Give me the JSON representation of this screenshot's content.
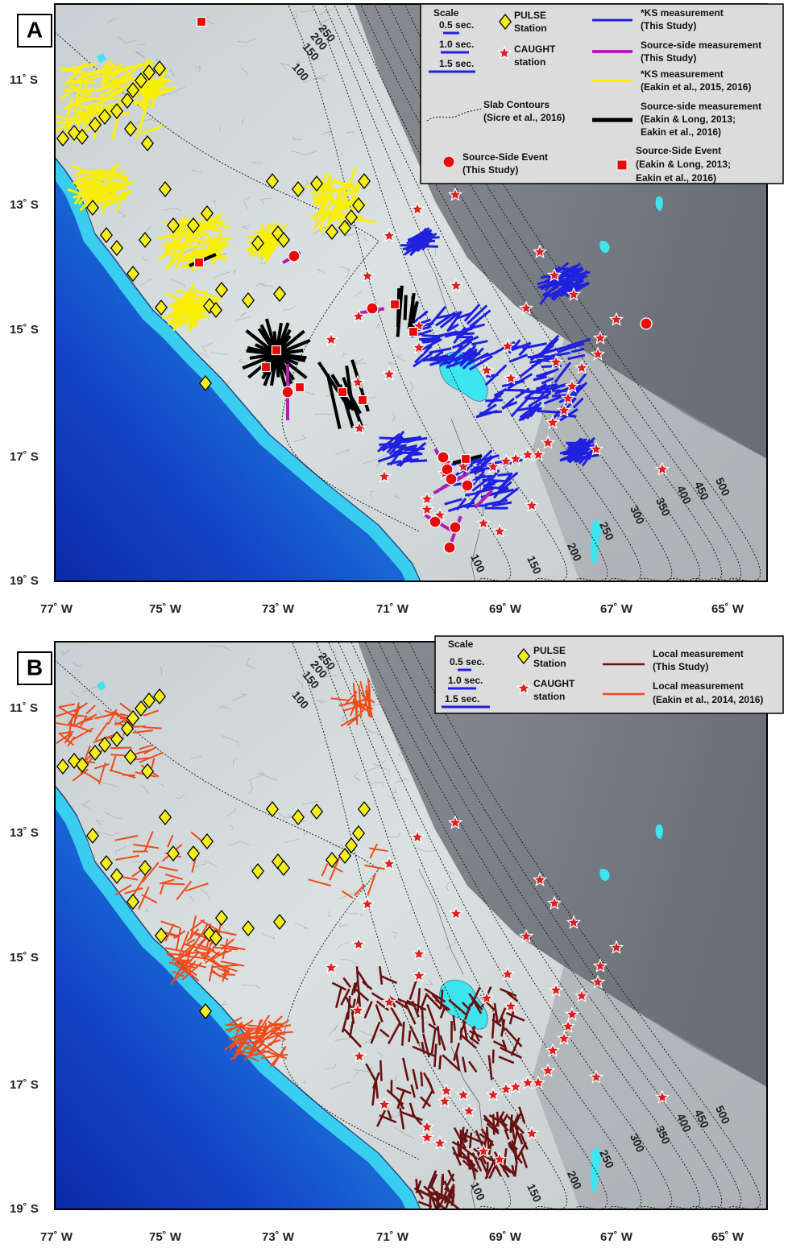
{
  "panels": [
    {
      "label": "A",
      "lat_labels": [
        "11˚ S",
        "13˚ S",
        "15˚ S",
        "17˚ S",
        "19˚ S"
      ],
      "lon_labels": [
        "77˚ W",
        "75˚ W",
        "73˚ W",
        "71˚ W",
        "69˚ W",
        "67˚ W",
        "65˚ W"
      ],
      "contour_labels_top": [
        "100",
        "150",
        "200",
        "250"
      ],
      "contour_labels_bottom": [
        "100",
        "150",
        "200",
        "250",
        "300",
        "350",
        "400",
        "450",
        "500"
      ],
      "legend": {
        "scale_title": "Scale",
        "scale_items": [
          "0.5 sec.",
          "1.0 sec.",
          "1.5 sec."
        ],
        "items": [
          {
            "lines": [
              "PULSE",
              "Station"
            ]
          },
          {
            "lines": [
              "CAUGHT",
              "station"
            ]
          },
          {
            "lines": [
              "*KS measurement",
              "(This Study)"
            ]
          },
          {
            "lines": [
              "Source-side measurement",
              "(This Study)"
            ]
          },
          {
            "lines": [
              "*KS measurement",
              "(Eakin et al., 2015, 2016)"
            ]
          },
          {
            "lines": [
              "Slab Contours",
              "(Sicre et al., 2016)"
            ]
          },
          {
            "lines": [
              "Source-side measurement",
              "(Eakin & Long, 2013;",
              "Eakin et al., 2016)"
            ]
          },
          {
            "lines": [
              "Source-Side Event",
              "(This Study)"
            ]
          },
          {
            "lines": [
              "Source-Side Event",
              "(Eakin & Long, 2013;",
              "Eakin et al., 2016)"
            ]
          }
        ]
      }
    },
    {
      "label": "B",
      "lat_labels": [
        "11˚ S",
        "13˚ S",
        "15˚ S",
        "17˚ S",
        "19˚ S"
      ],
      "lon_labels": [
        "77˚ W",
        "75˚ W",
        "73˚ W",
        "71˚ W",
        "69˚ W",
        "67˚ W",
        "65˚ W"
      ],
      "contour_labels_top": [
        "100",
        "150",
        "200",
        "250"
      ],
      "contour_labels_bottom": [
        "100",
        "150",
        "200",
        "250",
        "300",
        "350",
        "400",
        "450",
        "500"
      ],
      "legend": {
        "scale_title": "Scale",
        "scale_items": [
          "0.5 sec.",
          "1.0 sec.",
          "1.5 sec."
        ],
        "items": [
          {
            "lines": [
              "PULSE",
              "Station"
            ]
          },
          {
            "lines": [
              "CAUGHT",
              "station"
            ]
          },
          {
            "lines": [
              "Local measurement",
              "(This Study)"
            ]
          },
          {
            "lines": [
              "Local measurement",
              "(Eakin et al., 2014, 2016)"
            ]
          }
        ]
      }
    }
  ]
}
